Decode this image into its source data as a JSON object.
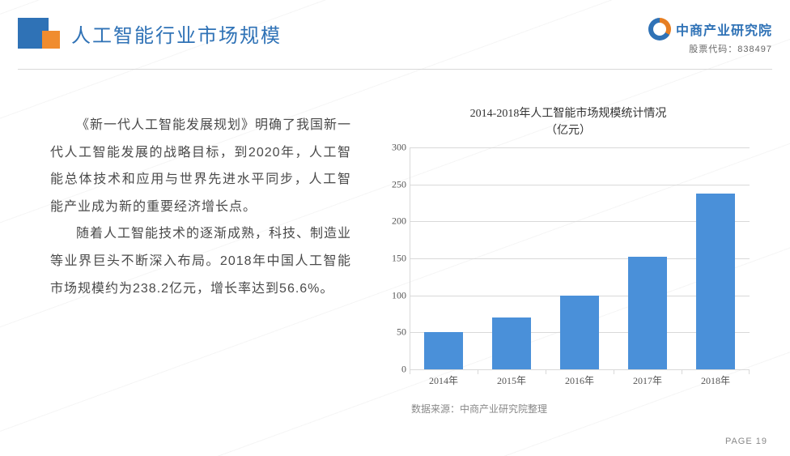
{
  "header": {
    "title": "人工智能行业市场规模",
    "logo_text": "中商产业研究院",
    "stock_code": "股票代码：838497",
    "title_color": "#2f72b6",
    "accent_colors": {
      "blue_sq": "#2f72b6",
      "orange_sq": "#f08c2e"
    }
  },
  "body_text": {
    "p1": "《新一代人工智能发展规划》明确了我国新一代人工智能发展的战略目标，到2020年，人工智能总体技术和应用与世界先进水平同步，人工智能产业成为新的重要经济增长点。",
    "p2": "随着人工智能技术的逐渐成熟，科技、制造业等业界巨头不断深入布局。2018年中国人工智能市场规模约为238.2亿元，增长率达到56.6%。",
    "font_size": 16,
    "line_height": 2.1,
    "color": "#4a4a4a"
  },
  "chart": {
    "type": "bar",
    "title_line1": "2014-2018年人工智能市场规模统计情况",
    "title_line2": "（亿元）",
    "title_fontsize": 14,
    "categories": [
      "2014年",
      "2015年",
      "2016年",
      "2017年",
      "2018年"
    ],
    "values": [
      50,
      70,
      100,
      152,
      238
    ],
    "bar_color": "#4a90d9",
    "bar_width_pct": 56,
    "ylim": [
      0,
      300
    ],
    "ytick_step": 50,
    "y_ticks": [
      0,
      50,
      100,
      150,
      200,
      250,
      300
    ],
    "grid_color": "#d9d9d9",
    "background_color": "#ffffff",
    "axis_label_fontsize": 12,
    "axis_label_color": "#555555",
    "source_label": "数据来源：中商产业研究院整理"
  },
  "footer": {
    "page_label": "PAGE 19"
  }
}
